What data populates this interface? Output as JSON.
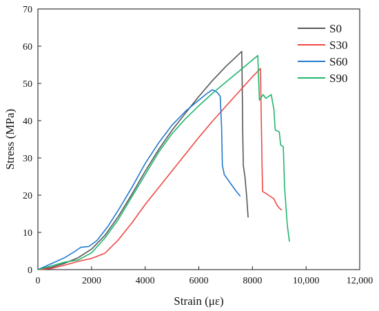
{
  "chart_data": {
    "type": "line",
    "title": "",
    "xlabel": "Strain (με)",
    "ylabel": "Stress (MPa)",
    "xlim": [
      0,
      12000
    ],
    "ylim": [
      0,
      70
    ],
    "xticks": [
      0,
      2000,
      4000,
      6000,
      8000,
      10000,
      12000
    ],
    "xtick_labels": [
      "0",
      "2000",
      "4000",
      "6000",
      "8000",
      "10,000",
      "12,000"
    ],
    "yticks": [
      0,
      10,
      20,
      30,
      40,
      50,
      60,
      70
    ],
    "ytick_labels": [
      "0",
      "10",
      "20",
      "30",
      "40",
      "50",
      "60",
      "70"
    ],
    "grid": false,
    "legend_position": "top-right",
    "series": [
      {
        "name": "S0",
        "color": "#555555",
        "points": [
          [
            0,
            0
          ],
          [
            500,
            0.6
          ],
          [
            1000,
            1.7
          ],
          [
            1500,
            3.2
          ],
          [
            2000,
            5.5
          ],
          [
            2500,
            9.2
          ],
          [
            3000,
            14.3
          ],
          [
            3500,
            20.2
          ],
          [
            4000,
            26.4
          ],
          [
            4500,
            32.2
          ],
          [
            5000,
            37.4
          ],
          [
            5500,
            42.0
          ],
          [
            6000,
            46.5
          ],
          [
            6500,
            50.7
          ],
          [
            7000,
            54.5
          ],
          [
            7400,
            57.2
          ],
          [
            7600,
            58.6
          ],
          [
            7620,
            50.0
          ],
          [
            7640,
            36.0
          ],
          [
            7660,
            28.0
          ],
          [
            7720,
            25.0
          ],
          [
            7780,
            20.0
          ],
          [
            7840,
            14.0
          ]
        ]
      },
      {
        "name": "S30",
        "color": "#f04646",
        "points": [
          [
            0,
            0
          ],
          [
            500,
            0.3
          ],
          [
            1000,
            1.2
          ],
          [
            1500,
            2.2
          ],
          [
            2000,
            3.0
          ],
          [
            2500,
            4.4
          ],
          [
            3000,
            8.0
          ],
          [
            3500,
            12.5
          ],
          [
            4000,
            17.5
          ],
          [
            4500,
            22.0
          ],
          [
            5000,
            26.5
          ],
          [
            5500,
            31.0
          ],
          [
            6000,
            35.5
          ],
          [
            6500,
            39.8
          ],
          [
            7000,
            43.8
          ],
          [
            7500,
            47.8
          ],
          [
            8000,
            51.8
          ],
          [
            8300,
            54.0
          ],
          [
            8330,
            40.0
          ],
          [
            8360,
            28.0
          ],
          [
            8380,
            21.0
          ],
          [
            8600,
            20.0
          ],
          [
            8800,
            19.0
          ],
          [
            8900,
            17.5
          ],
          [
            9000,
            16.5
          ],
          [
            9100,
            16.0
          ]
        ]
      },
      {
        "name": "S60",
        "color": "#1f78d0",
        "points": [
          [
            0,
            0
          ],
          [
            500,
            1.6
          ],
          [
            1000,
            3.2
          ],
          [
            1400,
            5.0
          ],
          [
            1600,
            6.0
          ],
          [
            1900,
            6.2
          ],
          [
            2200,
            7.8
          ],
          [
            2600,
            11.5
          ],
          [
            3000,
            16.0
          ],
          [
            3500,
            22.0
          ],
          [
            4000,
            28.5
          ],
          [
            4500,
            34.0
          ],
          [
            5000,
            38.8
          ],
          [
            5500,
            42.5
          ],
          [
            6000,
            45.5
          ],
          [
            6300,
            47.3
          ],
          [
            6500,
            48.3
          ],
          [
            6600,
            48.0
          ],
          [
            6700,
            47.5
          ],
          [
            6800,
            46.5
          ],
          [
            6850,
            38.0
          ],
          [
            6880,
            28.0
          ],
          [
            6950,
            25.5
          ],
          [
            7100,
            24.0
          ],
          [
            7250,
            22.5
          ],
          [
            7400,
            21.0
          ],
          [
            7550,
            19.7
          ]
        ]
      },
      {
        "name": "S90",
        "color": "#1fb56e",
        "points": [
          [
            0,
            0
          ],
          [
            500,
            1.0
          ],
          [
            1000,
            2.0
          ],
          [
            1500,
            2.6
          ],
          [
            2000,
            4.5
          ],
          [
            2500,
            8.5
          ],
          [
            3000,
            13.5
          ],
          [
            3500,
            19.5
          ],
          [
            4000,
            25.5
          ],
          [
            4500,
            31.5
          ],
          [
            5000,
            36.5
          ],
          [
            5500,
            40.5
          ],
          [
            6000,
            44.0
          ],
          [
            6500,
            47.3
          ],
          [
            7000,
            50.3
          ],
          [
            7500,
            53.3
          ],
          [
            8000,
            56.3
          ],
          [
            8200,
            57.5
          ],
          [
            8230,
            51.0
          ],
          [
            8260,
            45.5
          ],
          [
            8400,
            47.0
          ],
          [
            8500,
            46.0
          ],
          [
            8700,
            47.0
          ],
          [
            8800,
            43.0
          ],
          [
            8850,
            37.5
          ],
          [
            9000,
            37.0
          ],
          [
            9050,
            33.5
          ],
          [
            9150,
            33.0
          ],
          [
            9200,
            22.0
          ],
          [
            9300,
            12.0
          ],
          [
            9380,
            7.5
          ]
        ]
      }
    ]
  }
}
